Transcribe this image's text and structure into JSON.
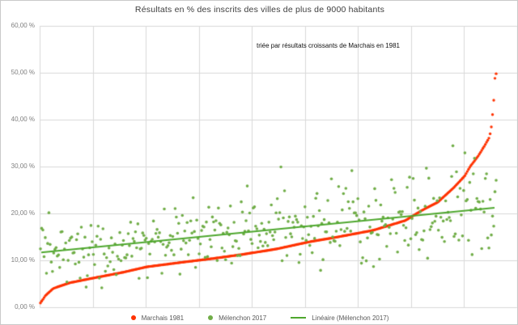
{
  "chart_data": {
    "type": "scatter",
    "title": "Résultats en % des inscrits des villes de plus de 9000 habitants",
    "annotation": "triée par résultats croissants de Marchais en 1981",
    "x_axis": {
      "label": "",
      "type": "city-index-sorted-by-marchais-1981",
      "count": 380,
      "gridline_intervals": 9,
      "tick_labels": []
    },
    "y_axis": {
      "min": 0,
      "max": 60,
      "step": 10,
      "unit": "%",
      "grid": true,
      "tick_labels": [
        "60,00 %",
        "50,00 %",
        "40,00 %",
        "30,00 %",
        "20,00 %",
        "10,00 %",
        "0,00 %"
      ]
    },
    "legend": {
      "position": "bottom-center"
    },
    "series": [
      {
        "name": "Marchais 1981",
        "marker": "dot",
        "color": "#ff3200",
        "count": 380,
        "sorted_ascending": true,
        "min_value": 0.9,
        "max_value": 49.8,
        "curve_anchors": [
          [
            0.0,
            0.9
          ],
          [
            0.011,
            2.5
          ],
          [
            0.028,
            4.0
          ],
          [
            0.064,
            5.2
          ],
          [
            0.115,
            6.2
          ],
          [
            0.179,
            7.4
          ],
          [
            0.233,
            8.6
          ],
          [
            0.304,
            9.5
          ],
          [
            0.38,
            10.4
          ],
          [
            0.446,
            11.3
          ],
          [
            0.517,
            12.4
          ],
          [
            0.588,
            13.9
          ],
          [
            0.659,
            15.1
          ],
          [
            0.73,
            16.4
          ],
          [
            0.801,
            18.5
          ],
          [
            0.836,
            20.6
          ],
          [
            0.872,
            22.4
          ],
          [
            0.907,
            25.5
          ],
          [
            0.931,
            28.0
          ],
          [
            0.943,
            30.0
          ],
          [
            0.961,
            32.3
          ],
          [
            0.975,
            34.5
          ],
          [
            0.985,
            36.2
          ],
          [
            0.988,
            37.5
          ],
          [
            0.99,
            38.8
          ],
          [
            0.991,
            40.0
          ],
          [
            0.993,
            42.0
          ],
          [
            0.9947,
            44.1
          ],
          [
            0.9973,
            48.8
          ],
          [
            1.0,
            49.8
          ]
        ]
      },
      {
        "name": "Mélenchon 2017",
        "marker": "dot",
        "color": "#70ad47",
        "count": 380,
        "min_value": 3.8,
        "max_value": 38.1,
        "distribution": {
          "trend_start": 11.7,
          "trend_end": 21.2,
          "sigma_base": 3.8,
          "sigma_slope": 0.9,
          "clamp_min": 3.8,
          "clamp_max": 38.3,
          "seed": 20170423
        }
      },
      {
        "name": "Linéaire (Mélenchon 2017)",
        "marker": "line",
        "color": "#4ea72e",
        "trendline_of": "Mélenchon 2017",
        "start_value": 11.7,
        "end_value": 21.2
      }
    ]
  },
  "colors": {
    "grid": "#d9d9d9",
    "axis_text": "#7f7f7f",
    "legend_text": "#595959",
    "title_text": "#3d3d3d",
    "border": "#c9c9c9",
    "background": "#ffffff"
  }
}
